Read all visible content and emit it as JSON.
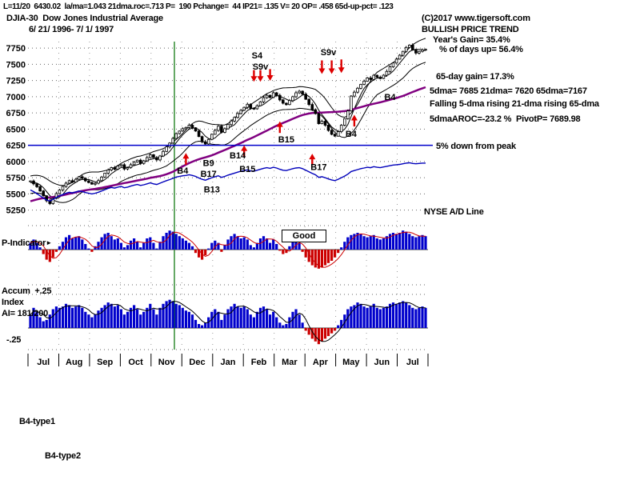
{
  "header": {
    "stats_line": "L=11/20  6430.02  la/ma=1.043 21dma.roc=.713 P=  190 Pchange=  44 IP21= .135 V= 20 OP= .458 65d-up-pct= .123",
    "symbol": "DJIA-30  Dow Jones Industrial Average",
    "copyright": "(C)2017 www.tigersoft.com",
    "date_range": "6/ 21/ 1996- 7/ 1/ 1997"
  },
  "right_panel": {
    "trend": "BULLISH PRICE TREND",
    "years_gain": "Year's Gain= 35.4%",
    "days_up": "% of days up= 56.4%",
    "gain_65d": "65-day gain= 17.3%",
    "dmas": "5dma= 7685 21dma= 7620 65dma=7167",
    "dma_trend": "Falling 5-dma rising 21-dma rising 65-dma",
    "aroc_pivot": "5dmaAROC=-23.2 %  PivotP= 7689.98",
    "peak_line_label": "5% down from peak",
    "ad_line_label": "NYSE A/D Line"
  },
  "panels": {
    "p_indicator_label": "P-Indicator",
    "p_pointer_icon": "►",
    "p_status": "Good",
    "accum_top_label": "Accum  +.25",
    "accum_index_label": "Index",
    "accum_ai_label": "AI= 181/200",
    "accum_bottom_label": "-.25"
  },
  "footer": {
    "note1": "B4-type1",
    "note2": "B4-type2"
  },
  "chart_data": {
    "type": "candlestick+indicators",
    "title": "DJIA-30 Dow Jones Industrial Average",
    "date_range": "6/21/1996 - 7/1/1997",
    "y_ticks": [
      7750,
      7500,
      7250,
      7000,
      6750,
      6500,
      6250,
      6000,
      5750,
      5500,
      5250
    ],
    "y_range": [
      5060,
      7850
    ],
    "x_months": [
      "Jul",
      "Aug",
      "Sep",
      "Oct",
      "Nov",
      "Dec",
      "Jan",
      "Feb",
      "Mar",
      "Apr",
      "May",
      "Jun",
      "Jul"
    ],
    "peak_drawdown_level": 6250,
    "vline_frac": 0.366,
    "ma_prehistory": {
      "n": 40,
      "start": 5050,
      "end": 5690
    },
    "close": [
      5700,
      5655,
      5610,
      5545,
      5470,
      5395,
      5350,
      5430,
      5505,
      5560,
      5615,
      5665,
      5705,
      5680,
      5725,
      5765,
      5740,
      5700,
      5675,
      5650,
      5665,
      5705,
      5760,
      5820,
      5870,
      5905,
      5880,
      5930,
      5950,
      5885,
      5905,
      5950,
      5990,
      6020,
      5970,
      6010,
      6060,
      6105,
      6060,
      6025,
      6085,
      6155,
      6225,
      6285,
      6355,
      6430,
      6470,
      6505,
      6525,
      6560,
      6520,
      6470,
      6385,
      6305,
      6270,
      6340,
      6420,
      6480,
      6545,
      6450,
      6505,
      6570,
      6625,
      6680,
      6740,
      6790,
      6835,
      6883,
      6820,
      6813,
      6860,
      6920,
      6985,
      7022,
      6990,
      7060,
      7020,
      6950,
      6900,
      6878,
      6940,
      7000,
      7060,
      7085,
      7040,
      6960,
      6880,
      6800,
      6740,
      6583,
      6620,
      6560,
      6480,
      6420,
      6391,
      6460,
      6560,
      6660,
      6780,
      7009,
      7070,
      7130,
      7190,
      7240,
      7290,
      7265,
      7330,
      7300,
      7280,
      7331,
      7390,
      7460,
      7520,
      7580,
      7640,
      7700,
      7760,
      7796,
      7720,
      7673,
      7700,
      7722,
      7730
    ],
    "ad_line": [
      5560,
      5535,
      5505,
      5470,
      5435,
      5405,
      5390,
      5415,
      5445,
      5470,
      5490,
      5510,
      5525,
      5515,
      5530,
      5545,
      5535,
      5520,
      5510,
      5500,
      5510,
      5525,
      5545,
      5565,
      5585,
      5600,
      5590,
      5605,
      5615,
      5595,
      5605,
      5620,
      5635,
      5645,
      5630,
      5640,
      5655,
      5670,
      5655,
      5645,
      5665,
      5685,
      5705,
      5720,
      5740,
      5760,
      5770,
      5780,
      5785,
      5795,
      5785,
      5770,
      5745,
      5725,
      5710,
      5730,
      5750,
      5765,
      5780,
      5755,
      5770,
      5790,
      5805,
      5820,
      5835,
      5850,
      5860,
      5870,
      5855,
      5850,
      5865,
      5880,
      5895,
      5905,
      5895,
      5910,
      5900,
      5880,
      5865,
      5860,
      5875,
      5890,
      5900,
      5905,
      5890,
      5865,
      5840,
      5815,
      5795,
      5755,
      5765,
      5750,
      5730,
      5715,
      5705,
      5725,
      5750,
      5775,
      5805,
      5845,
      5860,
      5875,
      5890,
      5900,
      5910,
      5905,
      5920,
      5910,
      5905,
      5915,
      5925,
      5935,
      5945,
      5950,
      5955,
      5965,
      5975,
      5980,
      5970,
      5965,
      5970,
      5975,
      5975
    ],
    "p_indicator": [
      0.3,
      0.45,
      0.3,
      0.1,
      -0.2,
      -0.45,
      -0.55,
      -0.35,
      -0.1,
      0.15,
      0.35,
      0.55,
      0.65,
      0.5,
      0.55,
      0.6,
      0.45,
      0.25,
      0.05,
      -0.1,
      0.15,
      0.35,
      0.55,
      0.7,
      0.75,
      0.6,
      0.45,
      0.5,
      0.3,
      0.1,
      0.2,
      0.4,
      0.5,
      0.35,
      0.1,
      0.3,
      0.5,
      0.55,
      0.3,
      0.05,
      0.35,
      0.6,
      0.75,
      0.85,
      0.8,
      0.7,
      0.6,
      0.5,
      0.4,
      0.3,
      0.15,
      -0.15,
      -0.35,
      -0.45,
      -0.25,
      0.05,
      0.3,
      0.4,
      0.3,
      -0.1,
      0.2,
      0.45,
      0.6,
      0.7,
      0.6,
      0.5,
      0.55,
      0.45,
      0.2,
      0.1,
      0.3,
      0.5,
      0.6,
      0.5,
      0.3,
      0.45,
      0.25,
      -0.05,
      -0.2,
      -0.15,
      0.15,
      0.35,
      0.45,
      0.3,
      -0.1,
      -0.35,
      -0.55,
      -0.7,
      -0.8,
      -0.85,
      -0.8,
      -0.7,
      -0.6,
      -0.5,
      -0.35,
      -0.15,
      0.1,
      0.35,
      0.55,
      0.65,
      0.7,
      0.75,
      0.7,
      0.6,
      0.55,
      0.6,
      0.65,
      0.5,
      0.45,
      0.5,
      0.6,
      0.7,
      0.75,
      0.7,
      0.75,
      0.85,
      0.8,
      0.7,
      0.6,
      0.55,
      0.6,
      0.65,
      0.6
    ],
    "accum": [
      0.1,
      0.15,
      0.12,
      0.08,
      0.05,
      0.06,
      0.1,
      0.14,
      0.16,
      0.15,
      0.16,
      0.18,
      0.17,
      0.15,
      0.16,
      0.17,
      0.15,
      0.12,
      0.1,
      0.08,
      0.1,
      0.13,
      0.15,
      0.17,
      0.19,
      0.18,
      0.16,
      0.17,
      0.14,
      0.1,
      0.12,
      0.15,
      0.17,
      0.14,
      0.1,
      0.12,
      0.15,
      0.18,
      0.14,
      0.1,
      0.15,
      0.18,
      0.2,
      0.21,
      0.2,
      0.18,
      0.17,
      0.15,
      0.13,
      0.12,
      0.1,
      0.06,
      0.03,
      0.02,
      0.04,
      0.08,
      0.12,
      0.14,
      0.12,
      0.06,
      0.1,
      0.14,
      0.16,
      0.18,
      0.16,
      0.15,
      0.16,
      0.14,
      0.1,
      0.08,
      0.12,
      0.15,
      0.16,
      0.14,
      0.1,
      0.12,
      0.08,
      0.04,
      0.02,
      0.03,
      0.08,
      0.12,
      0.14,
      0.1,
      0.04,
      -0.02,
      -0.05,
      -0.08,
      -0.1,
      -0.12,
      -0.1,
      -0.08,
      -0.06,
      -0.04,
      -0.02,
      0.02,
      0.06,
      0.1,
      0.14,
      0.16,
      0.17,
      0.19,
      0.18,
      0.16,
      0.15,
      0.16,
      0.18,
      0.15,
      0.14,
      0.15,
      0.16,
      0.18,
      0.19,
      0.18,
      0.19,
      0.2,
      0.19,
      0.17,
      0.15,
      0.14,
      0.15,
      0.16,
      0.15
    ],
    "signals": [
      {
        "label": "S4",
        "xi": 70,
        "price": 7640
      },
      {
        "label": "S9v",
        "xi": 71,
        "price": 7470
      },
      {
        "label": "S9v",
        "xi": 92,
        "price": 7690
      },
      {
        "label": "B4",
        "xi": 111,
        "price": 7000
      },
      {
        "label": "B4",
        "xi": 99,
        "price": 6430
      },
      {
        "label": "B15",
        "xi": 79,
        "price": 6345
      },
      {
        "label": "B17",
        "xi": 89,
        "price": 5915
      },
      {
        "label": "B4",
        "xi": 47,
        "price": 5865
      },
      {
        "label": "B9",
        "xi": 55,
        "price": 5980
      },
      {
        "label": "B17",
        "xi": 55,
        "price": 5815
      },
      {
        "label": "B14",
        "xi": 64,
        "price": 6100
      },
      {
        "label": "B15",
        "xi": 67,
        "price": 5890
      },
      {
        "label": "B13",
        "xi": 56,
        "price": 5570
      }
    ],
    "arrows": [
      {
        "xi": 69,
        "dir": "down",
        "tip": 7230,
        "tail": 7410
      },
      {
        "xi": 71,
        "dir": "down",
        "tip": 7230,
        "tail": 7410
      },
      {
        "xi": 74,
        "dir": "down",
        "tip": 7245,
        "tail": 7425
      },
      {
        "xi": 90,
        "dir": "down",
        "tip": 7350,
        "tail": 7560
      },
      {
        "xi": 93,
        "dir": "down",
        "tip": 7350,
        "tail": 7560
      },
      {
        "xi": 96,
        "dir": "down",
        "tip": 7365,
        "tail": 7575
      },
      {
        "xi": 48,
        "dir": "up",
        "tip": 6130,
        "tail": 5950
      },
      {
        "xi": 66,
        "dir": "up",
        "tip": 6250,
        "tail": 6070
      },
      {
        "xi": 77,
        "dir": "up",
        "tip": 6620,
        "tail": 6440
      },
      {
        "xi": 87,
        "dir": "up",
        "tip": 6120,
        "tail": 5940
      },
      {
        "xi": 100,
        "dir": "up",
        "tip": 6720,
        "tail": 6540
      }
    ],
    "colors": {
      "candle": "#000000",
      "band": "#000000",
      "ma65": "#800080",
      "ad_line": "#0000bb",
      "level_line": "#0000cc",
      "vline": "#007000",
      "arrow": "#dd0000",
      "p_pos": "#0000cc",
      "p_neg": "#cc0000",
      "accum": "#0000cc"
    }
  }
}
